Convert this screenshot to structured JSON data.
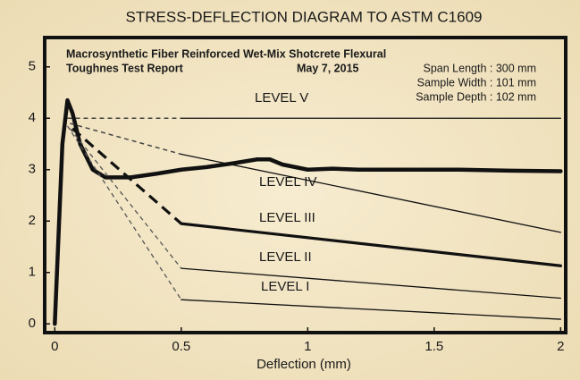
{
  "chart_data": {
    "type": "line",
    "title": "STRESS-DEFLECTION DIAGRAM TO ASTM C1609",
    "xlabel": "Deflection (mm)",
    "report_title": [
      "Macrosynthetic Fiber Reinforced Wet-Mix Shotcrete Flexural",
      "Toughnes Test Report"
    ],
    "report_date": "May 7, 2015",
    "report_details": [
      "Span Length : 300 mm",
      "Sample Width : 101 mm",
      "Sample Depth : 102 mm"
    ],
    "annotations": [
      "LEVEL V",
      "LEVEL IV",
      "LEVEL III",
      "LEVEL II",
      "LEVEL I"
    ],
    "xlim": [
      -0.04,
      2.02
    ],
    "ylim": [
      -0.17,
      5.57
    ],
    "xticks": [
      0,
      0.5,
      1,
      1.5,
      2
    ],
    "yticks": [
      0,
      1,
      2,
      3,
      4,
      5
    ],
    "series": [
      {
        "color": "#111111",
        "width": 4.5,
        "dashed": false,
        "x": [
          0,
          0.03,
          0.05,
          0.07,
          0.1,
          0.15,
          0.2,
          0.3,
          0.4,
          0.5,
          0.6,
          0.7,
          0.8,
          0.85,
          0.9,
          1.0,
          1.1,
          1.2,
          1.4,
          1.6,
          1.8,
          2.0
        ],
        "values": [
          0,
          3.5,
          4.35,
          4.1,
          3.5,
          3.0,
          2.85,
          2.85,
          2.92,
          3.0,
          3.05,
          3.12,
          3.2,
          3.2,
          3.1,
          3.0,
          3.02,
          3.0,
          3.0,
          3.0,
          2.98,
          2.97
        ]
      },
      {
        "color": "#444444",
        "width": 1.5,
        "dashed": true,
        "x": [
          0.05,
          0.5
        ],
        "values": [
          4.0,
          4.0
        ]
      },
      {
        "color": "#111111",
        "width": 1.3,
        "dashed": false,
        "x": [
          0.5,
          2.0
        ],
        "values": [
          4.0,
          4.0
        ]
      },
      {
        "color": "#444444",
        "width": 1.5,
        "dashed": true,
        "x": [
          0.06,
          0.5
        ],
        "values": [
          3.9,
          3.3
        ]
      },
      {
        "color": "#111111",
        "width": 1.3,
        "dashed": false,
        "x": [
          0.5,
          2.0
        ],
        "values": [
          3.3,
          1.78
        ]
      },
      {
        "color": "#111111",
        "width": 3.2,
        "dashed": true,
        "x": [
          0.07,
          0.5
        ],
        "values": [
          3.8,
          1.95
        ]
      },
      {
        "color": "#111111",
        "width": 3.2,
        "dashed": false,
        "x": [
          0.5,
          2.0
        ],
        "values": [
          1.95,
          1.13
        ]
      },
      {
        "color": "#555555",
        "width": 1.3,
        "dashed": true,
        "x": [
          0.06,
          0.5
        ],
        "values": [
          3.8,
          1.08
        ]
      },
      {
        "color": "#111111",
        "width": 1.3,
        "dashed": false,
        "x": [
          0.5,
          2.0
        ],
        "values": [
          1.08,
          0.5
        ]
      },
      {
        "color": "#555555",
        "width": 1.3,
        "dashed": true,
        "x": [
          0.05,
          0.5
        ],
        "values": [
          3.85,
          0.47
        ]
      },
      {
        "color": "#111111",
        "width": 1.3,
        "dashed": false,
        "x": [
          0.5,
          2.0
        ],
        "values": [
          0.47,
          0.09
        ]
      }
    ]
  }
}
